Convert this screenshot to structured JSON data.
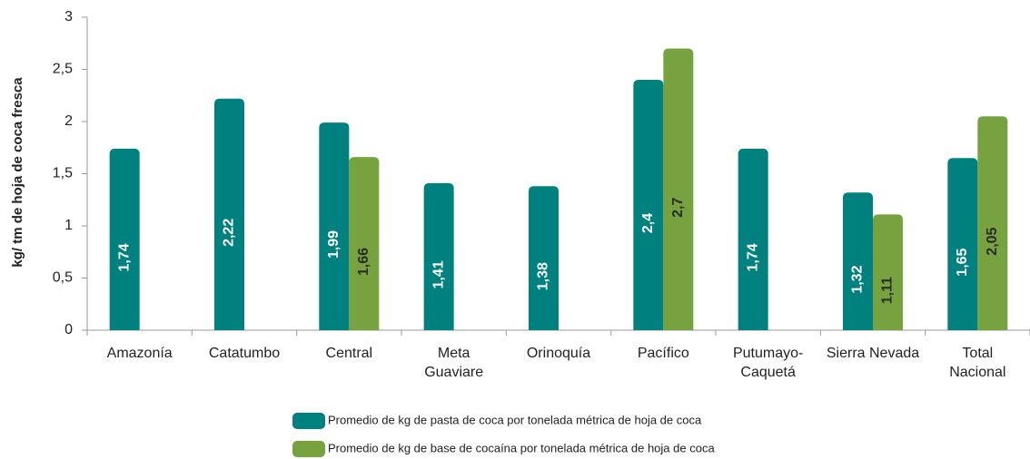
{
  "chart_data": {
    "type": "bar",
    "y_label": "kg/ tm de hoja de coca fresca",
    "categories": [
      "Amazonía",
      "Catatumbo",
      "Central",
      "Meta\nGuaviare",
      "Orinoquía",
      "Pacífico",
      "Putumayo-\nCaquetá",
      "Sierra Nevada",
      "Total\nNacional"
    ],
    "series": [
      {
        "name": "Promedio de kg de pasta de coca por tonelada métrica de  hoja de coca",
        "color": "#00807f",
        "values": [
          1.74,
          2.22,
          1.99,
          1.41,
          1.38,
          2.4,
          1.74,
          1.32,
          1.65
        ],
        "value_labels": [
          "1,74",
          "2,22",
          "1,99",
          "1,41",
          "1,38",
          "2,4",
          "1,74",
          "1,32",
          "1,65"
        ]
      },
      {
        "name": "Promedio de kg de base de cocaína por tonelada métrica de hoja de coca",
        "color": "#76a340",
        "values": [
          null,
          null,
          1.66,
          null,
          null,
          2.7,
          null,
          1.11,
          2.05
        ],
        "value_labels": [
          null,
          null,
          "1,66",
          null,
          null,
          "2,7",
          null,
          "1,11",
          "2,05"
        ]
      }
    ],
    "ylim": [
      0,
      3
    ],
    "yticks": [
      0,
      {
        "value": 0.5,
        "label": "0,5"
      },
      1,
      {
        "value": 1.5,
        "label": "1,5"
      },
      2,
      {
        "value": 2.5,
        "label": "2,5"
      },
      3
    ]
  }
}
